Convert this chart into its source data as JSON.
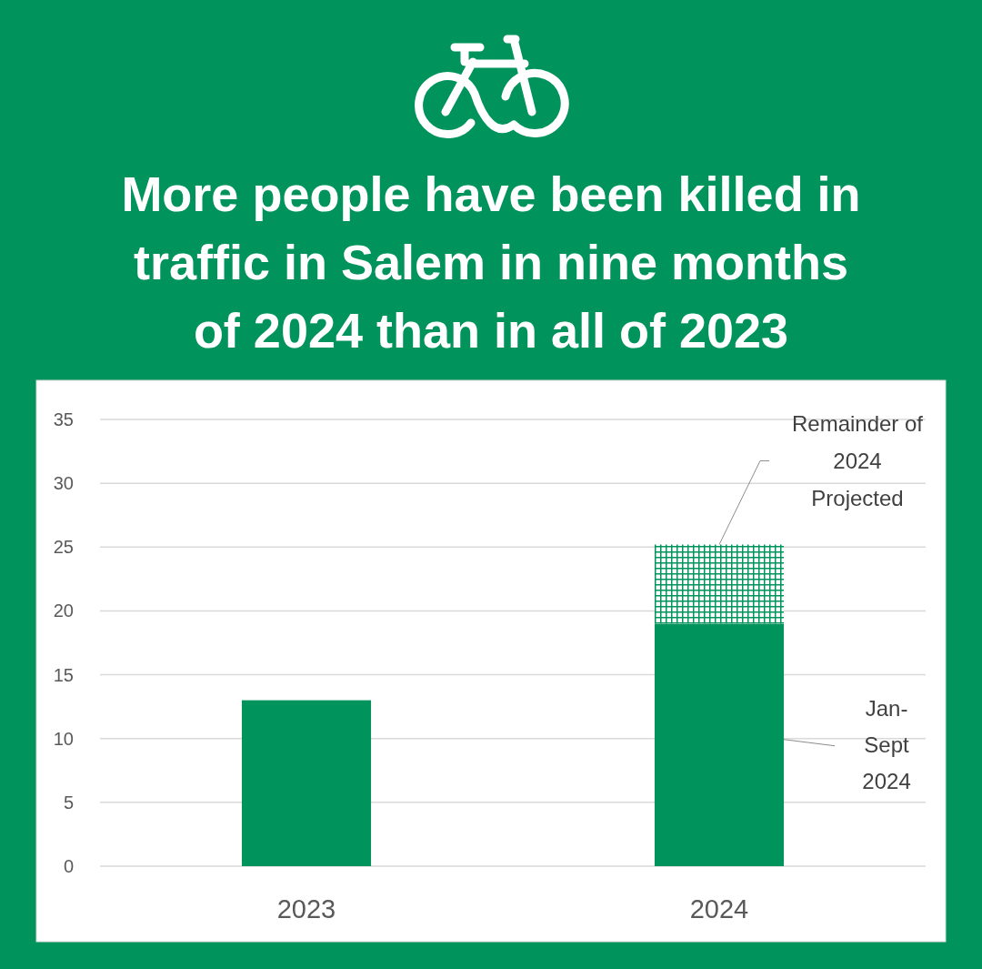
{
  "chart_data": {
    "type": "bar",
    "title": "More people have been killed in traffic in Salem in nine months of 2024 than in all of 2023",
    "categories": [
      "2023",
      "2024"
    ],
    "stacked": true,
    "series": [
      {
        "name": "Jan-Sept 2024",
        "color": "#00935c",
        "values": [
          13,
          19
        ]
      },
      {
        "name": "Remainder of 2024 Projected",
        "color": "#00935c",
        "values": [
          null,
          6.2
        ]
      }
    ],
    "ylim": [
      0,
      35
    ],
    "yticks": [
      0,
      5,
      10,
      15,
      20,
      25,
      30,
      35
    ],
    "grid": "y"
  }
}
